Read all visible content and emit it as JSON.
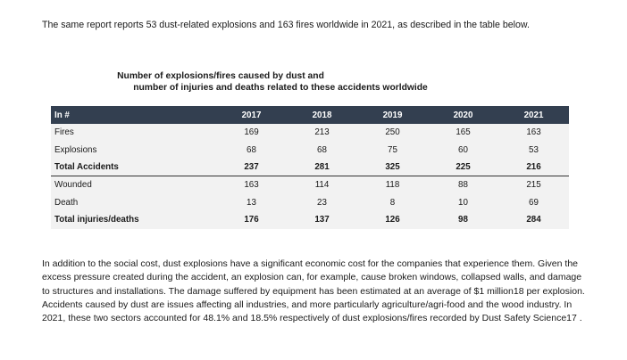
{
  "intro_text": "The same report reports 53 dust-related explosions and 163 fires worldwide in 2021, as described in the table below.",
  "table_caption": {
    "line1": "Number of explosions/fires caused by dust and",
    "line2": "number of injuries and deaths related to these accidents worldwide"
  },
  "table": {
    "header": {
      "label": "In #",
      "years": [
        "2017",
        "2018",
        "2019",
        "2020",
        "2021"
      ]
    },
    "rows": [
      {
        "label": "Fires",
        "values": [
          "169",
          "213",
          "250",
          "165",
          "163"
        ]
      },
      {
        "label": "Explosions",
        "values": [
          "68",
          "68",
          "75",
          "60",
          "53"
        ]
      },
      {
        "label": "Total Accidents",
        "values": [
          "237",
          "281",
          "325",
          "225",
          "216"
        ]
      },
      {
        "label": "Wounded",
        "values": [
          "163",
          "114",
          "118",
          "88",
          "215"
        ]
      },
      {
        "label": "Death",
        "values": [
          "13",
          "23",
          "8",
          "10",
          "69"
        ]
      },
      {
        "label": "Total injuries/deaths",
        "values": [
          "176",
          "137",
          "126",
          "98",
          "284"
        ]
      }
    ]
  },
  "body_paragraph": "In addition to the social cost, dust explosions have a significant economic cost for the companies that experience them. Given the excess pressure created during the accident, an explosion can, for example, cause broken windows, collapsed walls, and damage to structures and installations. The damage suffered by equipment has been estimated at an average of $1 million18 per explosion. Accidents caused by dust are issues affecting all industries, and more particularly agriculture/agri-food and the wood industry. In 2021, these two sectors accounted for 48.1% and 18.5% respectively of dust explosions/fires recorded by Dust Safety Science17 ."
}
